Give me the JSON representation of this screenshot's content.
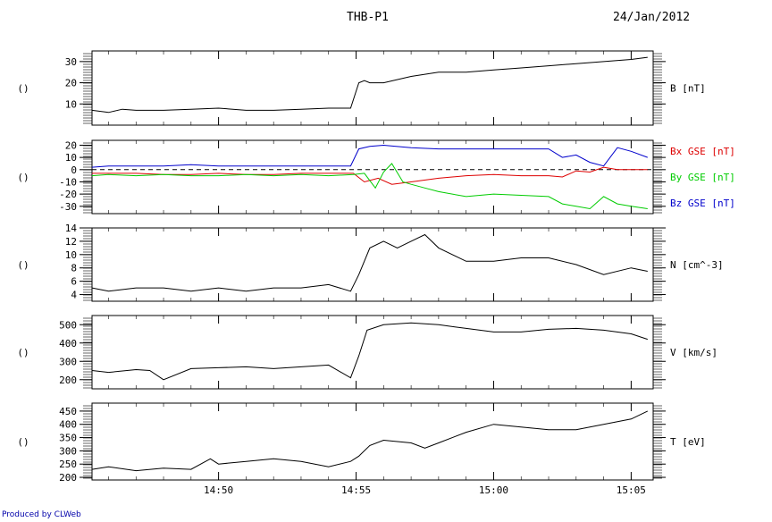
{
  "header": {
    "title": "THB-P1",
    "date": "24/Jan/2012"
  },
  "credit": "Produced by CLWeb",
  "colors": {
    "bx": "#dd0000",
    "by": "#00cc00",
    "bz": "#0000cc",
    "black": "#000000"
  },
  "chart_data": {
    "type": "line",
    "x_ticks": [
      "14:50",
      "14:55",
      "15:00",
      "15:05"
    ],
    "x_tick_minutes": [
      50,
      55,
      60,
      65
    ],
    "xlim_minutes": [
      45.4,
      65.8
    ],
    "panels": [
      {
        "id": "B",
        "left_label": "()",
        "ylim": [
          0,
          35
        ],
        "yticks": [
          10,
          20,
          30
        ],
        "right_labels": [
          {
            "text": "B [nT]",
            "color": "#000000"
          }
        ],
        "series": [
          {
            "color": "#000000",
            "x": [
              45.4,
              46.0,
              46.5,
              47.0,
              48.0,
              49.0,
              50.0,
              51.0,
              52.0,
              53.0,
              54.0,
              54.8,
              55.1,
              55.3,
              55.5,
              56.0,
              57.0,
              58.0,
              59.0,
              60.0,
              61.0,
              62.0,
              63.0,
              64.0,
              65.0,
              65.6
            ],
            "y": [
              7,
              6,
              7.5,
              7,
              7,
              7.5,
              8,
              7,
              7,
              7.5,
              8,
              8,
              20,
              21,
              20,
              20,
              23,
              25,
              25,
              26,
              27,
              28,
              29,
              30,
              31,
              32
            ]
          }
        ]
      },
      {
        "id": "BGSE",
        "left_label": "()",
        "ylim": [
          -36,
          24
        ],
        "yticks": [
          -30,
          -20,
          -10,
          0,
          10,
          20
        ],
        "zero_line": true,
        "right_labels": [
          {
            "text": "Bx GSE [nT]",
            "color": "#dd0000"
          },
          {
            "text": "By GSE [nT]",
            "color": "#00cc00"
          },
          {
            "text": "Bz GSE [nT]",
            "color": "#0000cc"
          }
        ],
        "series": [
          {
            "name": "Bx GSE [nT]",
            "color": "#dd0000",
            "x": [
              45.4,
              46.0,
              47.0,
              48.0,
              49.0,
              50.0,
              51.0,
              52.0,
              53.0,
              54.0,
              54.9,
              55.3,
              55.8,
              56.3,
              57.0,
              58.0,
              59.0,
              60.0,
              61.0,
              62.0,
              62.5,
              63.0,
              63.5,
              64.0,
              64.5,
              65.0,
              65.6
            ],
            "y": [
              -3,
              -3,
              -3,
              -4,
              -4,
              -3,
              -4,
              -4,
              -3,
              -3,
              -3,
              -10,
              -7,
              -12,
              -10,
              -7,
              -5,
              -4,
              -5,
              -5,
              -6,
              -1,
              -2,
              2,
              0,
              0,
              0
            ]
          },
          {
            "name": "By GSE [nT]",
            "color": "#00cc00",
            "x": [
              45.4,
              46.0,
              47.0,
              48.0,
              49.0,
              50.0,
              51.0,
              52.0,
              53.0,
              54.0,
              54.9,
              55.3,
              55.7,
              56.0,
              56.3,
              56.7,
              57.0,
              57.5,
              58.0,
              59.0,
              60.0,
              61.0,
              62.0,
              62.5,
              63.0,
              63.5,
              64.0,
              64.5,
              65.0,
              65.6
            ],
            "y": [
              -5,
              -4,
              -5,
              -4,
              -5,
              -5,
              -4,
              -5,
              -4,
              -5,
              -4,
              -3,
              -15,
              -2,
              5,
              -10,
              -12,
              -15,
              -18,
              -22,
              -20,
              -21,
              -22,
              -28,
              -30,
              -32,
              -22,
              -28,
              -30,
              -32
            ]
          },
          {
            "name": "Bz GSE [nT]",
            "color": "#0000cc",
            "x": [
              45.4,
              46.0,
              47.0,
              48.0,
              49.0,
              50.0,
              51.0,
              52.0,
              53.0,
              54.0,
              54.8,
              55.1,
              55.5,
              56.0,
              57.0,
              58.0,
              59.0,
              60.0,
              61.0,
              62.0,
              62.5,
              63.0,
              63.5,
              64.0,
              64.5,
              65.0,
              65.6
            ],
            "y": [
              2,
              3,
              3,
              3,
              4,
              3,
              3,
              3,
              3,
              3,
              3,
              17,
              19,
              20,
              18,
              17,
              17,
              17,
              17,
              17,
              10,
              12,
              6,
              3,
              18,
              15,
              10
            ]
          }
        ]
      },
      {
        "id": "N",
        "left_label": "()",
        "ylim": [
          3,
          14
        ],
        "yticks": [
          4,
          6,
          8,
          10,
          12,
          14
        ],
        "right_labels": [
          {
            "text": "N [cm^-3]",
            "color": "#000000"
          }
        ],
        "series": [
          {
            "color": "#000000",
            "x": [
              45.4,
              46.0,
              47.0,
              48.0,
              49.0,
              50.0,
              51.0,
              52.0,
              53.0,
              54.0,
              54.8,
              55.1,
              55.5,
              56.0,
              56.5,
              57.0,
              57.5,
              58.0,
              59.0,
              60.0,
              61.0,
              62.0,
              63.0,
              64.0,
              65.0,
              65.6
            ],
            "y": [
              5,
              4.5,
              5,
              5,
              4.5,
              5,
              4.5,
              5,
              5,
              5.5,
              4.5,
              7,
              11,
              12,
              11,
              12,
              13,
              11,
              9,
              9,
              9.5,
              9.5,
              8.5,
              7,
              8,
              7.5
            ]
          }
        ]
      },
      {
        "id": "V",
        "left_label": "()",
        "ylim": [
          150,
          550
        ],
        "yticks": [
          200,
          300,
          400,
          500
        ],
        "right_labels": [
          {
            "text": "V [km/s]",
            "color": "#000000"
          }
        ],
        "series": [
          {
            "color": "#000000",
            "x": [
              45.4,
              46.0,
              47.0,
              47.5,
              48.0,
              49.0,
              50.0,
              51.0,
              52.0,
              53.0,
              54.0,
              54.8,
              55.1,
              55.4,
              56.0,
              57.0,
              58.0,
              59.0,
              60.0,
              61.0,
              62.0,
              63.0,
              64.0,
              65.0,
              65.6
            ],
            "y": [
              250,
              240,
              255,
              250,
              200,
              260,
              265,
              270,
              260,
              270,
              280,
              210,
              330,
              470,
              500,
              510,
              500,
              480,
              460,
              460,
              475,
              480,
              470,
              450,
              420
            ]
          }
        ]
      },
      {
        "id": "T",
        "left_label": "()",
        "ylim": [
          190,
          480
        ],
        "yticks": [
          200,
          250,
          300,
          350,
          400,
          450
        ],
        "right_labels": [
          {
            "text": "T [eV]",
            "color": "#000000"
          }
        ],
        "series": [
          {
            "color": "#000000",
            "x": [
              45.4,
              46.0,
              47.0,
              48.0,
              49.0,
              49.7,
              50.0,
              51.0,
              52.0,
              53.0,
              54.0,
              54.8,
              55.1,
              55.5,
              56.0,
              57.0,
              57.5,
              58.0,
              59.0,
              60.0,
              61.0,
              62.0,
              63.0,
              64.0,
              65.0,
              65.6
            ],
            "y": [
              230,
              240,
              225,
              235,
              230,
              270,
              250,
              260,
              270,
              260,
              240,
              260,
              280,
              320,
              340,
              330,
              310,
              330,
              370,
              400,
              390,
              380,
              380,
              400,
              420,
              450
            ]
          }
        ]
      }
    ]
  }
}
